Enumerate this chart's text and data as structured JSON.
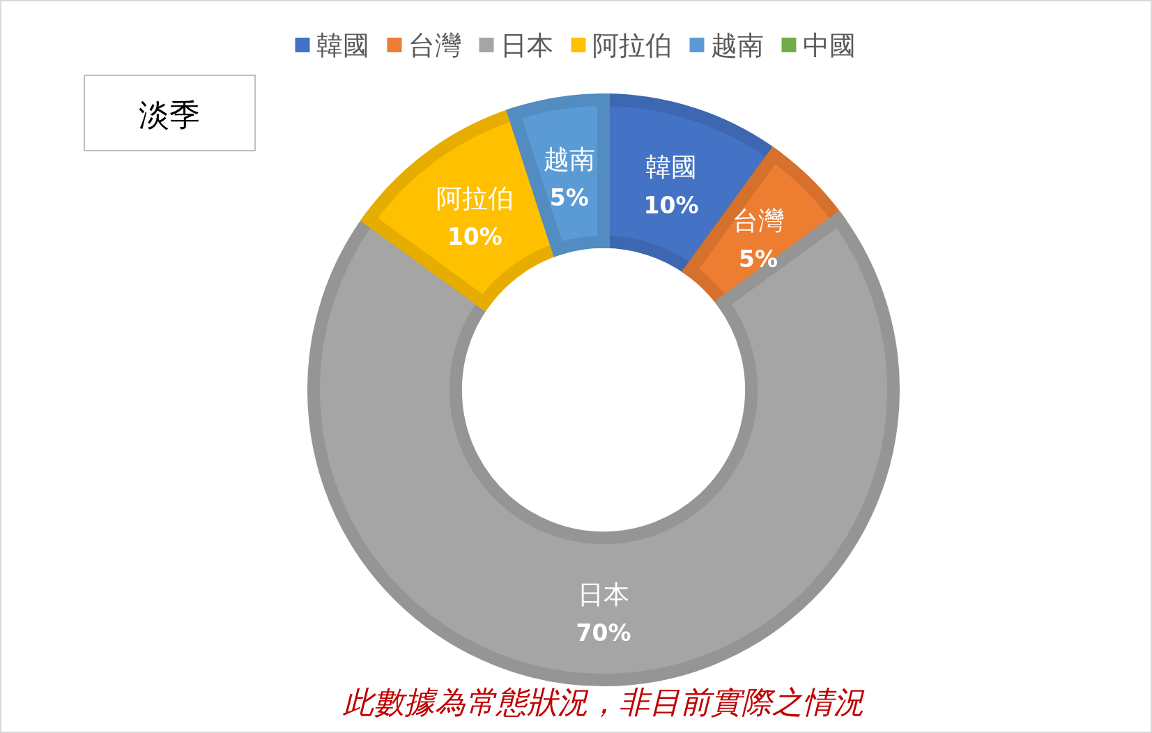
{
  "chart_data": {
    "type": "donut",
    "title": "淡季",
    "categories": [
      "韓國",
      "台灣",
      "日本",
      "阿拉伯",
      "越南",
      "中國"
    ],
    "values": [
      10,
      5,
      70,
      10,
      5,
      0
    ],
    "colors": [
      "#4472c4",
      "#ed7d31",
      "#a5a5a5",
      "#ffc000",
      "#5b9bd5",
      "#70ad47"
    ],
    "value_labels": [
      "10%",
      "5%",
      "70%",
      "10%",
      "5%",
      null
    ],
    "legend": "top",
    "annotations": [
      "此數據為常態狀況，非目前實際之情況"
    ]
  }
}
